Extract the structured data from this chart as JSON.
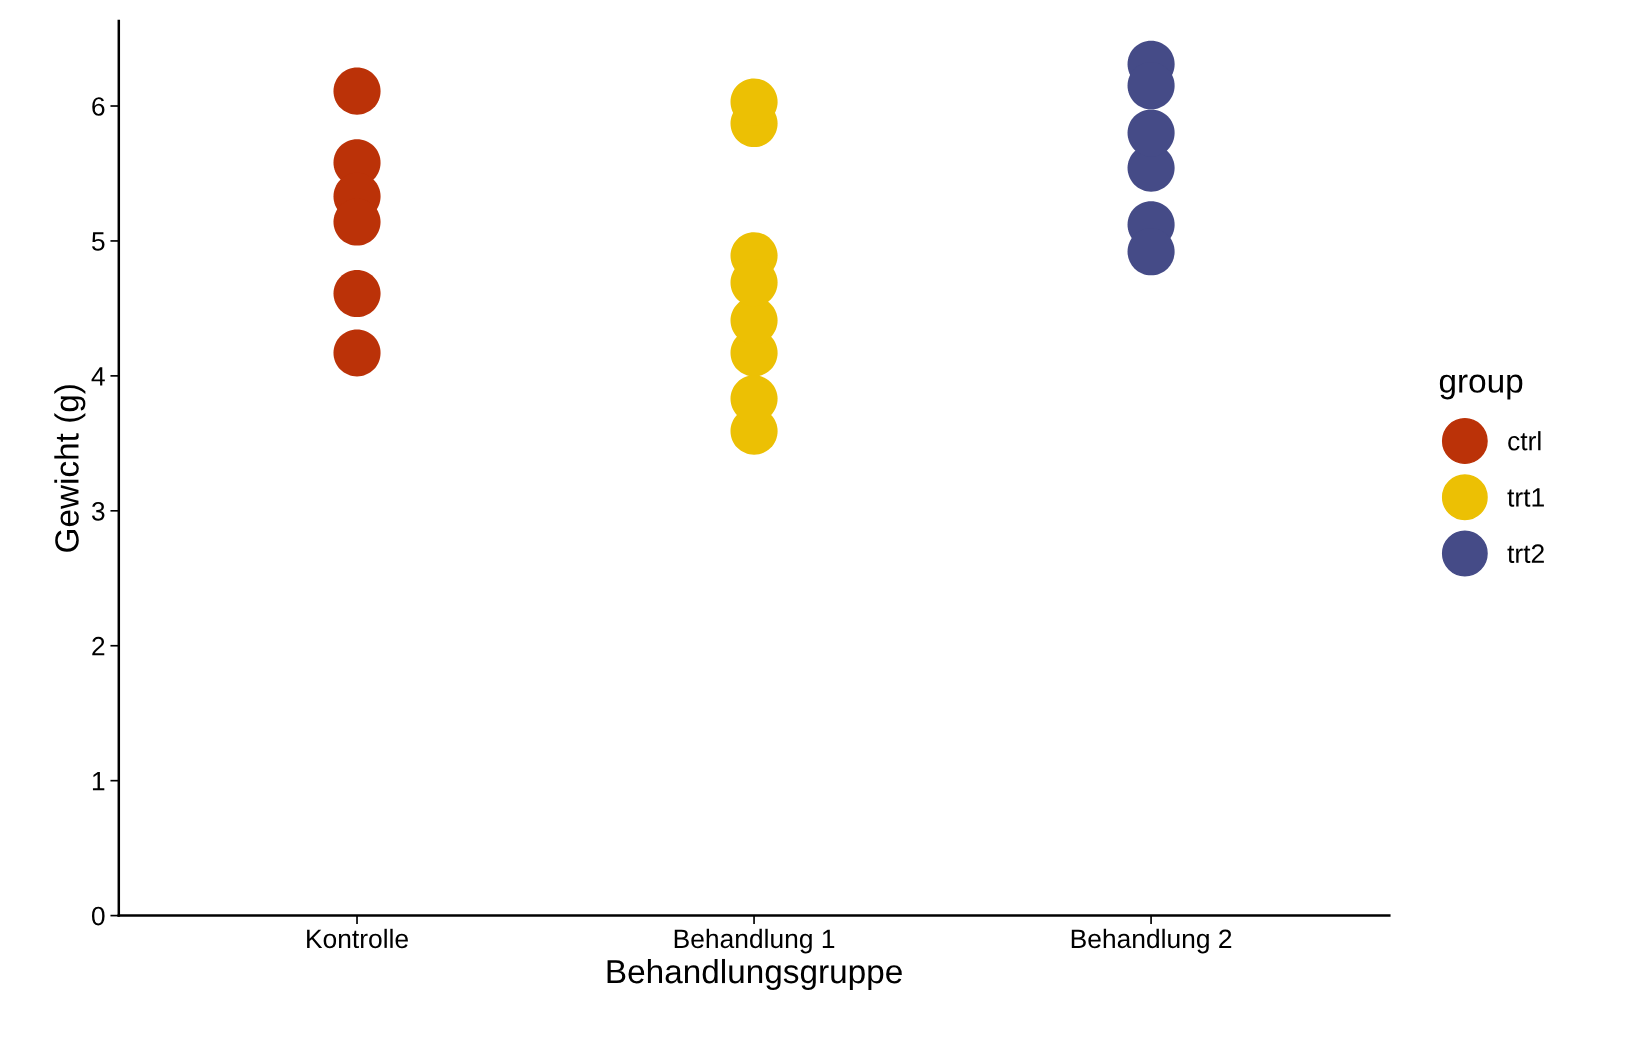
{
  "chart_data": {
    "type": "scatter",
    "xlabel": "Behandlungsgruppe",
    "ylabel": "Gewicht (g)",
    "legend_title": "group",
    "categories": [
      "Kontrolle",
      "Behandlung 1",
      "Behandlung 2"
    ],
    "series": [
      {
        "name": "ctrl",
        "color": "#bb3208",
        "x": [
          "Kontrolle",
          "Kontrolle",
          "Kontrolle",
          "Kontrolle",
          "Kontrolle",
          "Kontrolle",
          "Kontrolle",
          "Kontrolle",
          "Kontrolle",
          "Kontrolle"
        ],
        "values": [
          4.17,
          5.58,
          null,
          6.11,
          null,
          4.61,
          null,
          null,
          5.33,
          5.14
        ]
      },
      {
        "name": "trt1",
        "color": "#ecc004",
        "x": [
          "Behandlung 1",
          "Behandlung 1",
          "Behandlung 1",
          "Behandlung 1",
          "Behandlung 1",
          "Behandlung 1",
          "Behandlung 1",
          "Behandlung 1",
          "Behandlung 1",
          "Behandlung 1"
        ],
        "values": [
          null,
          4.17,
          4.41,
          3.59,
          5.87,
          3.83,
          6.03,
          4.89,
          null,
          4.69
        ]
      },
      {
        "name": "trt2",
        "color": "#454b87",
        "x": [
          "Behandlung 2",
          "Behandlung 2",
          "Behandlung 2",
          "Behandlung 2",
          "Behandlung 2",
          "Behandlung 2",
          "Behandlung 2",
          "Behandlung 2",
          "Behandlung 2",
          "Behandlung 2"
        ],
        "values": [
          6.31,
          5.12,
          5.54,
          null,
          null,
          null,
          4.92,
          6.15,
          5.8,
          null
        ]
      }
    ],
    "ylim": [
      0,
      6.63
    ],
    "yticks": [
      0,
      1,
      2,
      3,
      4,
      5,
      6
    ],
    "grid": false,
    "legend": "right",
    "marker": "circle"
  }
}
